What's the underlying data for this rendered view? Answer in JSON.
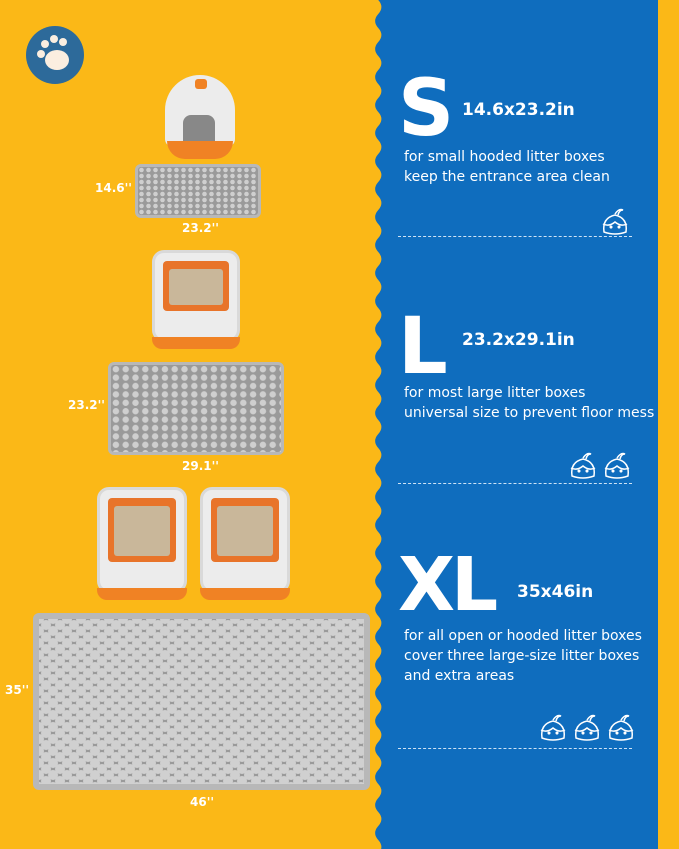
{
  "colors": {
    "background": "#FBB817",
    "panel": "#0F6DBE",
    "paw_badge": "#2D6A9A",
    "mat": "#9a9a9a",
    "box_accent": "#F08224"
  },
  "badge": {
    "icon": "paw-icon"
  },
  "left": {
    "small": {
      "height_label": "14.6''",
      "width_label": "23.2''"
    },
    "large": {
      "height_label": "23.2''",
      "width_label": "29.1''"
    },
    "xl": {
      "height_label": "35''",
      "width_label": "46''"
    }
  },
  "sizes": [
    {
      "letter": "S",
      "dimensions": "14.6x23.2in",
      "lines": [
        "for small hooded litter boxes",
        "keep the entrance area clean"
      ],
      "cat_icons": 1
    },
    {
      "letter": "L",
      "dimensions": "23.2x29.1in",
      "lines": [
        "for most large litter boxes",
        "universal size to prevent floor mess"
      ],
      "cat_icons": 2
    },
    {
      "letter": "XL",
      "dimensions": "35x46in",
      "lines": [
        "for all open or hooded litter boxes",
        "cover three large-size litter boxes",
        "and extra areas"
      ],
      "cat_icons": 3
    }
  ]
}
